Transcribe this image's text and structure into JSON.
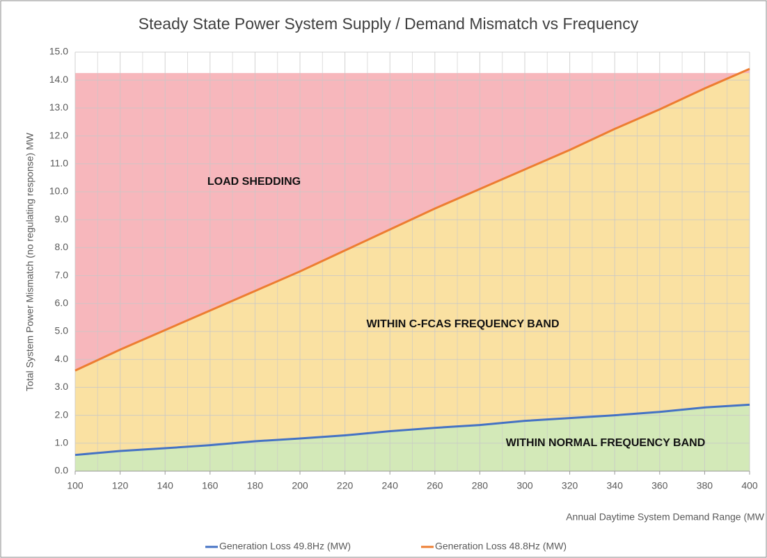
{
  "chart_data": {
    "type": "line",
    "title": "Steady State Power System Supply / Demand Mismatch vs Frequency",
    "x_label": "Annual Daytime System Demand Range (MW",
    "y_label": "Total System Power Mismatch (no regulating response) MW",
    "x": [
      100,
      120,
      140,
      160,
      180,
      200,
      220,
      240,
      260,
      280,
      300,
      320,
      340,
      360,
      380,
      400
    ],
    "series": [
      {
        "name": "Generation Loss 49.8Hz (MW)",
        "color": "#4472c4",
        "fill": "#d3e9b8",
        "values": [
          0.58,
          0.72,
          0.82,
          0.93,
          1.07,
          1.17,
          1.28,
          1.43,
          1.55,
          1.65,
          1.8,
          1.9,
          2.0,
          2.12,
          2.28,
          2.38
        ]
      },
      {
        "name": "Generation Loss 48.8Hz (MW)",
        "color": "#ed7d31",
        "fill": "#fae1a2",
        "values": [
          3.6,
          4.35,
          5.05,
          5.75,
          6.45,
          7.15,
          7.9,
          8.65,
          9.4,
          10.1,
          10.8,
          11.5,
          12.25,
          12.95,
          13.7,
          14.4
        ]
      }
    ],
    "upper_band": {
      "top": 14.25,
      "fill": "#f7b7bc"
    },
    "annotations": [
      "LOAD SHEDDING",
      "WITHIN C-FCAS FREQUENCY BAND",
      "WITHIN NORMAL FREQUENCY BAND"
    ],
    "xlim": [
      100,
      400
    ],
    "xticks": [
      100,
      120,
      140,
      160,
      180,
      200,
      220,
      240,
      260,
      280,
      300,
      320,
      340,
      360,
      380,
      400
    ],
    "ylim": [
      0,
      15
    ],
    "yticks": [
      {
        "value": 0,
        "label": "0.0"
      },
      {
        "value": 1,
        "label": "1.0"
      },
      {
        "value": 2,
        "label": "2.0"
      },
      {
        "value": 3,
        "label": "3.0"
      },
      {
        "value": 4,
        "label": "4.0"
      },
      {
        "value": 5,
        "label": "5.0"
      },
      {
        "value": 6,
        "label": "6.0"
      },
      {
        "value": 7,
        "label": "7.0"
      },
      {
        "value": 8,
        "label": "8.0"
      },
      {
        "value": 9,
        "label": "9.0"
      },
      {
        "value": 10,
        "label": "10.0"
      },
      {
        "value": 11,
        "label": "11.0"
      },
      {
        "value": 12,
        "label": "12.0"
      },
      {
        "value": 13,
        "label": "13.0"
      },
      {
        "value": 14,
        "label": "14.0"
      },
      {
        "value": 15,
        "label": "15.0"
      }
    ],
    "grid": true,
    "legend": "bottom"
  }
}
